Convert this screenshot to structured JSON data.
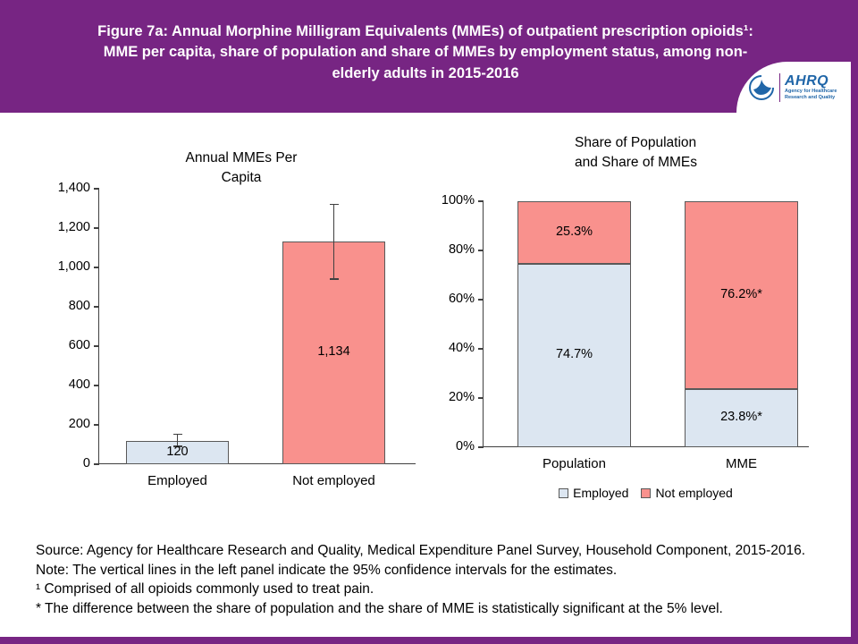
{
  "header": {
    "title": "Figure 7a: Annual Morphine Milligram Equivalents (MMEs) of outpatient prescription opioids¹: MME per capita, share of population and share of MMEs by employment status, among non-elderly adults in 2015-2016",
    "logo": {
      "name": "AHRQ",
      "tagline": "Agency for Healthcare Research and Quality"
    }
  },
  "chart_data": [
    {
      "type": "bar",
      "title": "Annual MMEs Per\nCapita",
      "categories": [
        "Employed",
        "Not employed"
      ],
      "values": [
        120,
        1134
      ],
      "value_labels": [
        "120",
        "1,134"
      ],
      "ci": [
        [
          95,
          155
        ],
        [
          945,
          1325
        ]
      ],
      "ylim": [
        0,
        1400
      ],
      "yticks": [
        "0",
        "200",
        "400",
        "600",
        "800",
        "1,000",
        "1,200",
        "1,400"
      ],
      "bar_colors": [
        "#dce6f1",
        "#f9918d"
      ],
      "grid": false,
      "error_bars": "95% confidence intervals"
    },
    {
      "type": "stacked-bar",
      "title": "Share of Population\nand Share of MMEs",
      "categories": [
        "Population",
        "MME"
      ],
      "series": [
        {
          "name": "Employed",
          "color": "#dce6f1",
          "values": [
            74.7,
            23.8
          ],
          "labels": [
            "74.7%",
            "23.8%*"
          ]
        },
        {
          "name": "Not employed",
          "color": "#f9918d",
          "values": [
            25.3,
            76.2
          ],
          "labels": [
            "25.3%",
            "76.2%*"
          ]
        }
      ],
      "ylim": [
        0,
        100
      ],
      "yticks": [
        "0%",
        "20%",
        "40%",
        "60%",
        "80%",
        "100%"
      ],
      "legend_position": "bottom",
      "grid": false
    }
  ],
  "footnotes": {
    "source": "Source: Agency for Healthcare Research and Quality, Medical Expenditure Panel Survey, Household Component, 2015-2016.",
    "note": "Note: The vertical lines in the left panel indicate the 95% confidence intervals for the estimates.",
    "footnote1": "¹ Comprised of all opioids commonly used to treat pain.",
    "footnote_star": "* The difference between the share of population and the share of MME is statistically significant at the 5% level."
  },
  "colors": {
    "header_purple": "#772583",
    "employed_blue": "#dce6f1",
    "not_employed_pink": "#f9918d"
  }
}
